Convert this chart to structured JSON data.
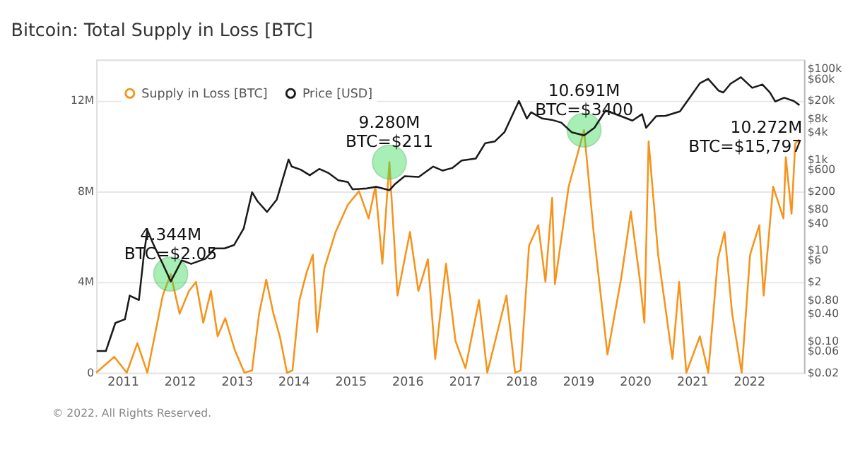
{
  "chart_data": {
    "type": "line",
    "title": "Bitcoin: Total Supply in Loss [BTC]",
    "x": [
      "2010-07-15",
      "2010-11-08",
      "2011-01-27",
      "2011-04-05",
      "2011-06-08",
      "2011-09-15",
      "2011-11-05",
      "2012-01-01",
      "2012-03-01",
      "2012-04-15",
      "2012-06-01",
      "2012-07-20",
      "2012-09-01",
      "2012-10-20",
      "2012-12-20",
      "2013-02-20",
      "2013-04-10",
      "2013-05-25",
      "2013-07-10",
      "2013-08-25",
      "2013-10-05",
      "2013-11-20",
      "2013-12-25",
      "2014-02-08",
      "2014-03-25",
      "2014-05-05",
      "2014-06-01",
      "2014-07-18",
      "2014-09-28",
      "2014-12-15",
      "2015-02-25",
      "2015-04-28",
      "2015-06-10",
      "2015-07-25",
      "2015-09-08",
      "2015-10-30",
      "2016-01-18",
      "2016-03-12",
      "2016-05-12",
      "2016-06-28",
      "2016-09-05",
      "2016-11-05",
      "2017-01-08",
      "2017-04-05",
      "2017-05-28",
      "2017-09-28",
      "2017-11-22",
      "2017-12-28",
      "2018-02-20",
      "2018-04-20",
      "2018-06-05",
      "2018-07-18",
      "2018-08-05",
      "2018-11-01",
      "2019-02-08",
      "2019-04-10",
      "2019-07-08",
      "2019-10-05",
      "2019-12-05",
      "2020-01-30",
      "2020-03-01",
      "2020-03-28",
      "2020-05-28",
      "2020-08-28",
      "2020-10-10",
      "2020-11-25",
      "2021-02-20",
      "2021-04-15",
      "2021-06-15",
      "2021-07-28",
      "2021-09-15",
      "2021-11-15",
      "2022-01-08",
      "2022-03-08",
      "2022-04-05",
      "2022-06-05",
      "2022-08-10",
      "2022-08-25",
      "2022-10-01",
      "2022-10-25",
      "2022-11-21"
    ],
    "series": [
      {
        "name": "Supply in Loss [BTC]",
        "color": "#f7931a",
        "values": [
          0,
          700000,
          0,
          1300000,
          0,
          3400000,
          4344000,
          2600000,
          3600000,
          4000000,
          2200000,
          3600000,
          1600000,
          2400000,
          1000000,
          0,
          100000,
          2600000,
          4100000,
          2600000,
          1600000,
          0,
          100000,
          3200000,
          4400000,
          5200000,
          1800000,
          4600000,
          6200000,
          7400000,
          8000000,
          6800000,
          8200000,
          4800000,
          9280000,
          3400000,
          6200000,
          3600000,
          5000000,
          600000,
          4800000,
          1400000,
          200000,
          3200000,
          0,
          3400000,
          0,
          100000,
          5600000,
          6500000,
          4000000,
          7700000,
          3900000,
          8200000,
          10691000,
          6200000,
          800000,
          4200000,
          7100000,
          4200000,
          2200000,
          10200000,
          5200000,
          600000,
          4000000,
          0,
          1600000,
          0,
          5000000,
          6200000,
          2600000,
          0,
          5200000,
          6500000,
          3400000,
          8200000,
          6800000,
          9500000,
          7000000,
          10100000,
          10272000
        ]
      },
      {
        "name": "Price [USD]",
        "color": "#1a1a1a",
        "axis": "y2",
        "x": [
          "2010-07-18",
          "2010-09-15",
          "2010-11-15",
          "2011-01-15",
          "2011-02-15",
          "2011-04-15",
          "2011-05-15",
          "2011-06-08",
          "2011-07-15",
          "2011-09-15",
          "2011-10-15",
          "2011-11-05",
          "2012-01-15",
          "2012-03-15",
          "2012-06-15",
          "2012-08-15",
          "2012-10-15",
          "2012-12-15",
          "2013-02-15",
          "2013-04-10",
          "2013-05-15",
          "2013-07-15",
          "2013-09-15",
          "2013-11-30",
          "2013-12-20",
          "2014-02-15",
          "2014-04-15",
          "2014-06-15",
          "2014-08-15",
          "2014-10-15",
          "2014-12-15",
          "2015-01-15",
          "2015-04-15",
          "2015-06-15",
          "2015-09-08",
          "2015-10-15",
          "2015-12-15",
          "2016-03-15",
          "2016-06-15",
          "2016-08-15",
          "2016-10-15",
          "2016-12-15",
          "2017-03-15",
          "2017-05-15",
          "2017-07-15",
          "2017-09-15",
          "2017-12-17",
          "2018-02-06",
          "2018-03-05",
          "2018-05-15",
          "2018-07-15",
          "2018-09-15",
          "2018-11-20",
          "2019-02-08",
          "2019-04-15",
          "2019-06-26",
          "2019-09-15",
          "2019-12-15",
          "2020-02-15",
          "2020-03-12",
          "2020-05-15",
          "2020-07-15",
          "2020-10-15",
          "2020-12-20",
          "2021-02-20",
          "2021-04-14",
          "2021-06-20",
          "2021-07-20",
          "2021-09-05",
          "2021-11-10",
          "2022-01-22",
          "2022-03-28",
          "2022-05-15",
          "2022-06-18",
          "2022-08-15",
          "2022-10-15",
          "2022-11-21"
        ],
        "values": [
          0.06,
          0.06,
          0.25,
          0.3,
          1,
          0.8,
          7,
          28,
          14,
          5,
          3,
          2.05,
          6,
          5,
          6.5,
          11,
          11,
          13,
          30,
          190,
          120,
          70,
          130,
          1000,
          700,
          600,
          450,
          620,
          500,
          350,
          320,
          220,
          230,
          250,
          211,
          290,
          430,
          415,
          700,
          570,
          650,
          950,
          1050,
          2300,
          2500,
          4000,
          19500,
          8000,
          11000,
          8000,
          7500,
          6500,
          4000,
          3400,
          5000,
          12000,
          9500,
          7200,
          10000,
          5000,
          9000,
          9200,
          11500,
          24000,
          48000,
          60000,
          33000,
          30000,
          47000,
          65000,
          38000,
          45000,
          30000,
          19000,
          23000,
          19500,
          15797
        ]
      }
    ],
    "xlim": [
      "2010-07-15",
      "2022-12-20"
    ],
    "xticks": [
      "2011",
      "2012",
      "2013",
      "2014",
      "2015",
      "2016",
      "2017",
      "2018",
      "2019",
      "2020",
      "2021",
      "2022"
    ],
    "ylim": [
      0,
      13800000
    ],
    "yticks": [
      0,
      {
        "value": 4000000,
        "label": "4M"
      },
      {
        "value": 8000000,
        "label": "8M"
      },
      {
        "value": 12000000,
        "label": "12M"
      }
    ],
    "log": "y2",
    "y2lim": [
      0.02,
      160000
    ],
    "y2ticks": [
      {
        "value": 0.02,
        "label": "$0.02"
      },
      {
        "value": 0.06,
        "label": "$0.06"
      },
      {
        "value": 0.1,
        "label": "$0.10"
      },
      {
        "value": 0.4,
        "label": "$0.40"
      },
      {
        "value": 0.8,
        "label": "$0.80"
      },
      {
        "value": 2,
        "label": "$2"
      },
      {
        "value": 6,
        "label": "$6"
      },
      {
        "value": 10,
        "label": "$10"
      },
      {
        "value": 40,
        "label": "$40"
      },
      {
        "value": 80,
        "label": "$80"
      },
      {
        "value": 200,
        "label": "$200"
      },
      {
        "value": 600,
        "label": "$600"
      },
      {
        "value": 1000,
        "label": "$1k"
      },
      {
        "value": 4000,
        "label": "$4k"
      },
      {
        "value": 8000,
        "label": "$8k"
      },
      {
        "value": 20000,
        "label": "$20k"
      },
      {
        "value": 60000,
        "label": "$60k"
      },
      {
        "value": 100000,
        "label": "$100k"
      }
    ],
    "annotations": [
      {
        "text": "4.344M\nBTC=$2.05",
        "x": "2011-11-05",
        "y": 4344000
      },
      {
        "text": "9.280M\nBTC=$211",
        "x": "2015-09-08",
        "y": 9280000
      },
      {
        "text": "10.691M\nBTC=$3400",
        "x": "2019-02-08",
        "y": 10691000
      },
      {
        "text": "10.272M\nBTC=$15,797",
        "x": "2022-11-21",
        "y": 10272000
      },
      "© 2022. All Rights Reserved."
    ],
    "grid": "y",
    "legend": "top left",
    "marker": "none",
    "line_style": "solid"
  }
}
